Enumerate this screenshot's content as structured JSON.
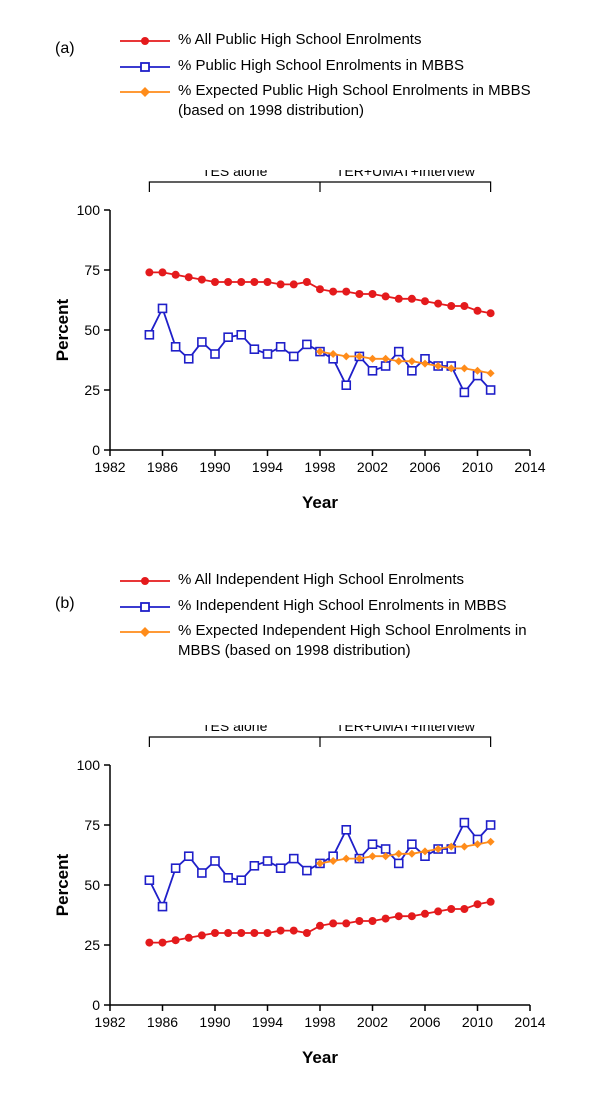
{
  "panel_a": {
    "label": "(a)",
    "legend": [
      "% All Public High School Enrolments",
      "% Public High School Enrolments in MBBS",
      "% Expected Public High School Enrolments in MBBS (based on 1998 distribution)"
    ],
    "annotations": {
      "left": "TES alone",
      "right": "TER+UMAT+Interview",
      "bracket_left_year": 1985,
      "bracket_mid_year": 1998,
      "bracket_right_year": 2011
    },
    "chart": {
      "type": "line",
      "xlabel": "Year",
      "ylabel": "Percent",
      "xlim": [
        1982,
        2014
      ],
      "ylim": [
        0,
        100
      ],
      "xticks": [
        1982,
        1986,
        1990,
        1994,
        1998,
        2002,
        2006,
        2010,
        2014
      ],
      "yticks": [
        0,
        25,
        50,
        75,
        100
      ],
      "axis_fontsize": 14,
      "label_fontsize": 17,
      "label_fontweight": "bold",
      "line_width": 1.8,
      "marker_size": 4,
      "background_color": "#ffffff",
      "axis_color": "#000000",
      "series": [
        {
          "name": "all_public",
          "color": "#e41a1c",
          "marker": "circle",
          "years": [
            1985,
            1986,
            1987,
            1988,
            1989,
            1990,
            1991,
            1992,
            1993,
            1994,
            1995,
            1996,
            1997,
            1998,
            1999,
            2000,
            2001,
            2002,
            2003,
            2004,
            2005,
            2006,
            2007,
            2008,
            2009,
            2010,
            2011
          ],
          "values": [
            74,
            74,
            73,
            72,
            71,
            70,
            70,
            70,
            70,
            70,
            69,
            69,
            70,
            67,
            66,
            66,
            65,
            65,
            64,
            63,
            63,
            62,
            61,
            60,
            60,
            58,
            57
          ]
        },
        {
          "name": "public_mbbs",
          "color": "#1f1fc9",
          "marker": "square-hollow",
          "years": [
            1985,
            1986,
            1987,
            1988,
            1989,
            1990,
            1991,
            1992,
            1993,
            1994,
            1995,
            1996,
            1997,
            1998,
            1999,
            2000,
            2001,
            2002,
            2003,
            2004,
            2005,
            2006,
            2007,
            2008,
            2009,
            2010,
            2011
          ],
          "values": [
            48,
            59,
            43,
            38,
            45,
            40,
            47,
            48,
            42,
            40,
            43,
            39,
            44,
            41,
            38,
            27,
            39,
            33,
            35,
            41,
            33,
            38,
            35,
            35,
            24,
            31,
            25
          ]
        },
        {
          "name": "expected_public",
          "color": "#ff8c1a",
          "marker": "diamond",
          "years": [
            1998,
            1999,
            2000,
            2001,
            2002,
            2003,
            2004,
            2005,
            2006,
            2007,
            2008,
            2009,
            2010,
            2011
          ],
          "values": [
            41,
            40,
            39,
            39,
            38,
            38,
            37,
            37,
            36,
            35,
            34,
            34,
            33,
            32
          ]
        }
      ]
    }
  },
  "panel_b": {
    "label": "(b)",
    "legend": [
      "% All Independent High School Enrolments",
      "% Independent High School Enrolments in MBBS",
      "% Expected Independent High School Enrolments in MBBS (based on 1998 distribution)"
    ],
    "annotations": {
      "left": "TES alone",
      "right": "TER+UMAT+Interview",
      "bracket_left_year": 1985,
      "bracket_mid_year": 1998,
      "bracket_right_year": 2011
    },
    "chart": {
      "type": "line",
      "xlabel": "Year",
      "ylabel": "Percent",
      "xlim": [
        1982,
        2014
      ],
      "ylim": [
        0,
        100
      ],
      "xticks": [
        1982,
        1986,
        1990,
        1994,
        1998,
        2002,
        2006,
        2010,
        2014
      ],
      "yticks": [
        0,
        25,
        50,
        75,
        100
      ],
      "axis_fontsize": 14,
      "label_fontsize": 17,
      "label_fontweight": "bold",
      "line_width": 1.8,
      "marker_size": 4,
      "background_color": "#ffffff",
      "axis_color": "#000000",
      "series": [
        {
          "name": "all_independent",
          "color": "#e41a1c",
          "marker": "circle",
          "years": [
            1985,
            1986,
            1987,
            1988,
            1989,
            1990,
            1991,
            1992,
            1993,
            1994,
            1995,
            1996,
            1997,
            1998,
            1999,
            2000,
            2001,
            2002,
            2003,
            2004,
            2005,
            2006,
            2007,
            2008,
            2009,
            2010,
            2011
          ],
          "values": [
            26,
            26,
            27,
            28,
            29,
            30,
            30,
            30,
            30,
            30,
            31,
            31,
            30,
            33,
            34,
            34,
            35,
            35,
            36,
            37,
            37,
            38,
            39,
            40,
            40,
            42,
            43
          ]
        },
        {
          "name": "independent_mbbs",
          "color": "#1f1fc9",
          "marker": "square-hollow",
          "years": [
            1985,
            1986,
            1987,
            1988,
            1989,
            1990,
            1991,
            1992,
            1993,
            1994,
            1995,
            1996,
            1997,
            1998,
            1999,
            2000,
            2001,
            2002,
            2003,
            2004,
            2005,
            2006,
            2007,
            2008,
            2009,
            2010,
            2011
          ],
          "values": [
            52,
            41,
            57,
            62,
            55,
            60,
            53,
            52,
            58,
            60,
            57,
            61,
            56,
            59,
            62,
            73,
            61,
            67,
            65,
            59,
            67,
            62,
            65,
            65,
            76,
            69,
            75
          ]
        },
        {
          "name": "expected_independent",
          "color": "#ff8c1a",
          "marker": "diamond",
          "years": [
            1998,
            1999,
            2000,
            2001,
            2002,
            2003,
            2004,
            2005,
            2006,
            2007,
            2008,
            2009,
            2010,
            2011
          ],
          "values": [
            59,
            60,
            61,
            61,
            62,
            62,
            63,
            63,
            64,
            65,
            66,
            66,
            67,
            68
          ]
        }
      ]
    }
  }
}
